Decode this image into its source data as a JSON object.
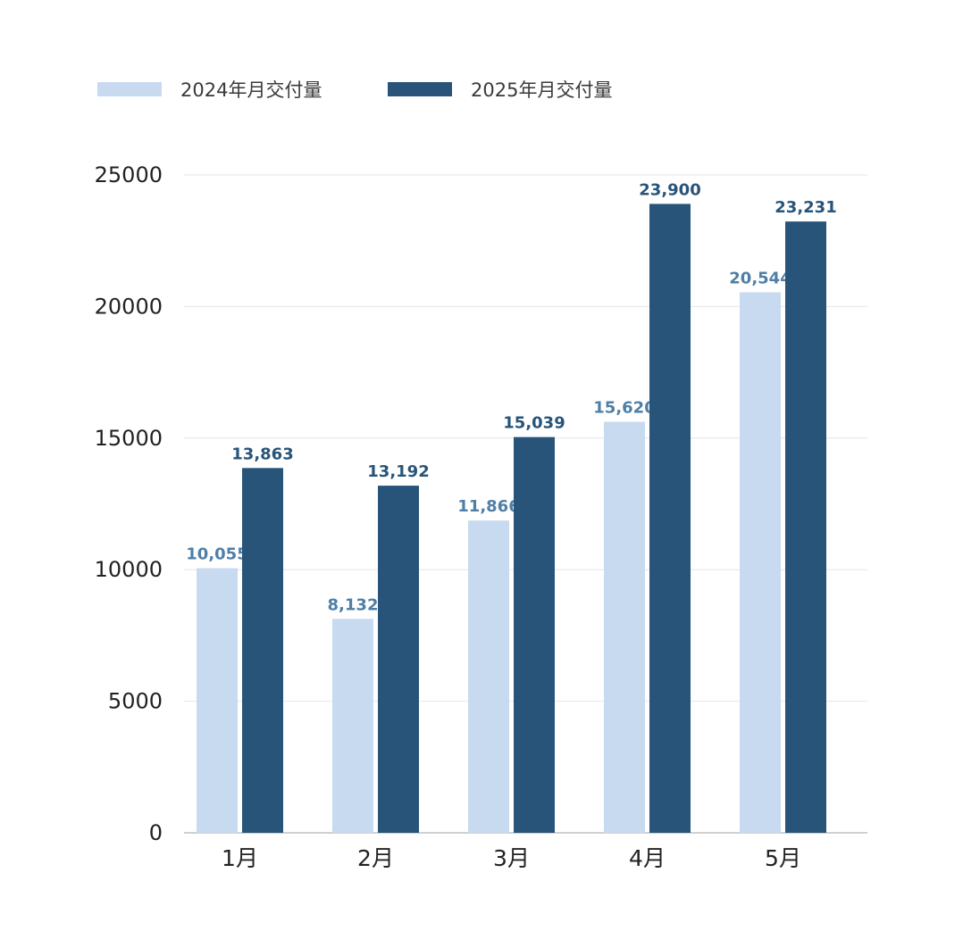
{
  "chart_data": {
    "type": "bar",
    "title": "",
    "xlabel": "",
    "ylabel": "",
    "categories": [
      "1月",
      "2月",
      "3月",
      "4月",
      "5月"
    ],
    "series": [
      {
        "name": "2024年月交付量",
        "values": [
          10055,
          8132,
          11866,
          15620,
          20544
        ],
        "labels": [
          "10,055",
          "8,132",
          "11,866",
          "15,620",
          "20,544"
        ],
        "color": "#c8daf0",
        "label_color": "#4f7fa6"
      },
      {
        "name": "2025年月交付量",
        "values": [
          13863,
          13192,
          15039,
          23900,
          23231
        ],
        "labels": [
          "13,863",
          "13,192",
          "15,039",
          "23,900",
          "23,231"
        ],
        "color": "#285479",
        "label_color": "#285479"
      }
    ],
    "ylim": [
      0,
      25000
    ],
    "yticks": [
      0,
      5000,
      10000,
      15000,
      20000,
      25000
    ],
    "ytick_labels": [
      "0",
      "5000",
      "10000",
      "15000",
      "20000",
      "25000"
    ],
    "grid": true,
    "legend_position": "top-left",
    "colors": {
      "grid": "#e6e6e6",
      "axis": "#b4b4b4",
      "text": "#222222"
    }
  }
}
